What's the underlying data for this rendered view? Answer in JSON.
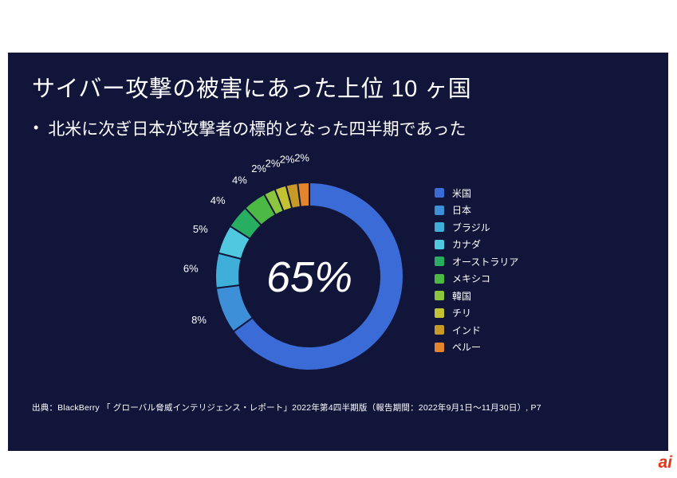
{
  "slide": {
    "title": "サイバー攻撃の被害にあった上位 10 ヶ国",
    "bullet_marker": "•",
    "bullet": "北米に次ぎ日本が攻撃者の標的となった四半期であった",
    "source": "出典：BlackBerry 「 グローバル脅威インテリジェンス・レポート」2022年第4四半期版（報告期間：2022年9月1日～11月30日）, P7"
  },
  "colors": {
    "slide_bg": "#101539",
    "text": "#FFFFFF"
  },
  "chart_data": {
    "type": "pie",
    "subtype": "donut",
    "title": "",
    "center_label": "65%",
    "legend_position": "right",
    "start_angle_deg": 0,
    "direction": "clockwise",
    "categories": [
      "米国",
      "日本",
      "ブラジル",
      "カナダ",
      "オーストラリア",
      "メキシコ",
      "韓国",
      "チリ",
      "インド",
      "ペルー"
    ],
    "values": [
      65,
      8,
      6,
      5,
      4,
      4,
      2,
      2,
      2,
      2
    ],
    "colors": [
      "#3B6BD6",
      "#3D8FD8",
      "#3FAFD9",
      "#4FC8E0",
      "#27AE60",
      "#4CB944",
      "#8CC63F",
      "#C2C233",
      "#C79A28",
      "#E2852D"
    ],
    "slice_labels": [
      "",
      "8%",
      "6%",
      "5%",
      "4%",
      "4%",
      "2%",
      "2%",
      "2%",
      "2%"
    ]
  },
  "logo": {
    "text": "ai",
    "color": "#E53517"
  }
}
